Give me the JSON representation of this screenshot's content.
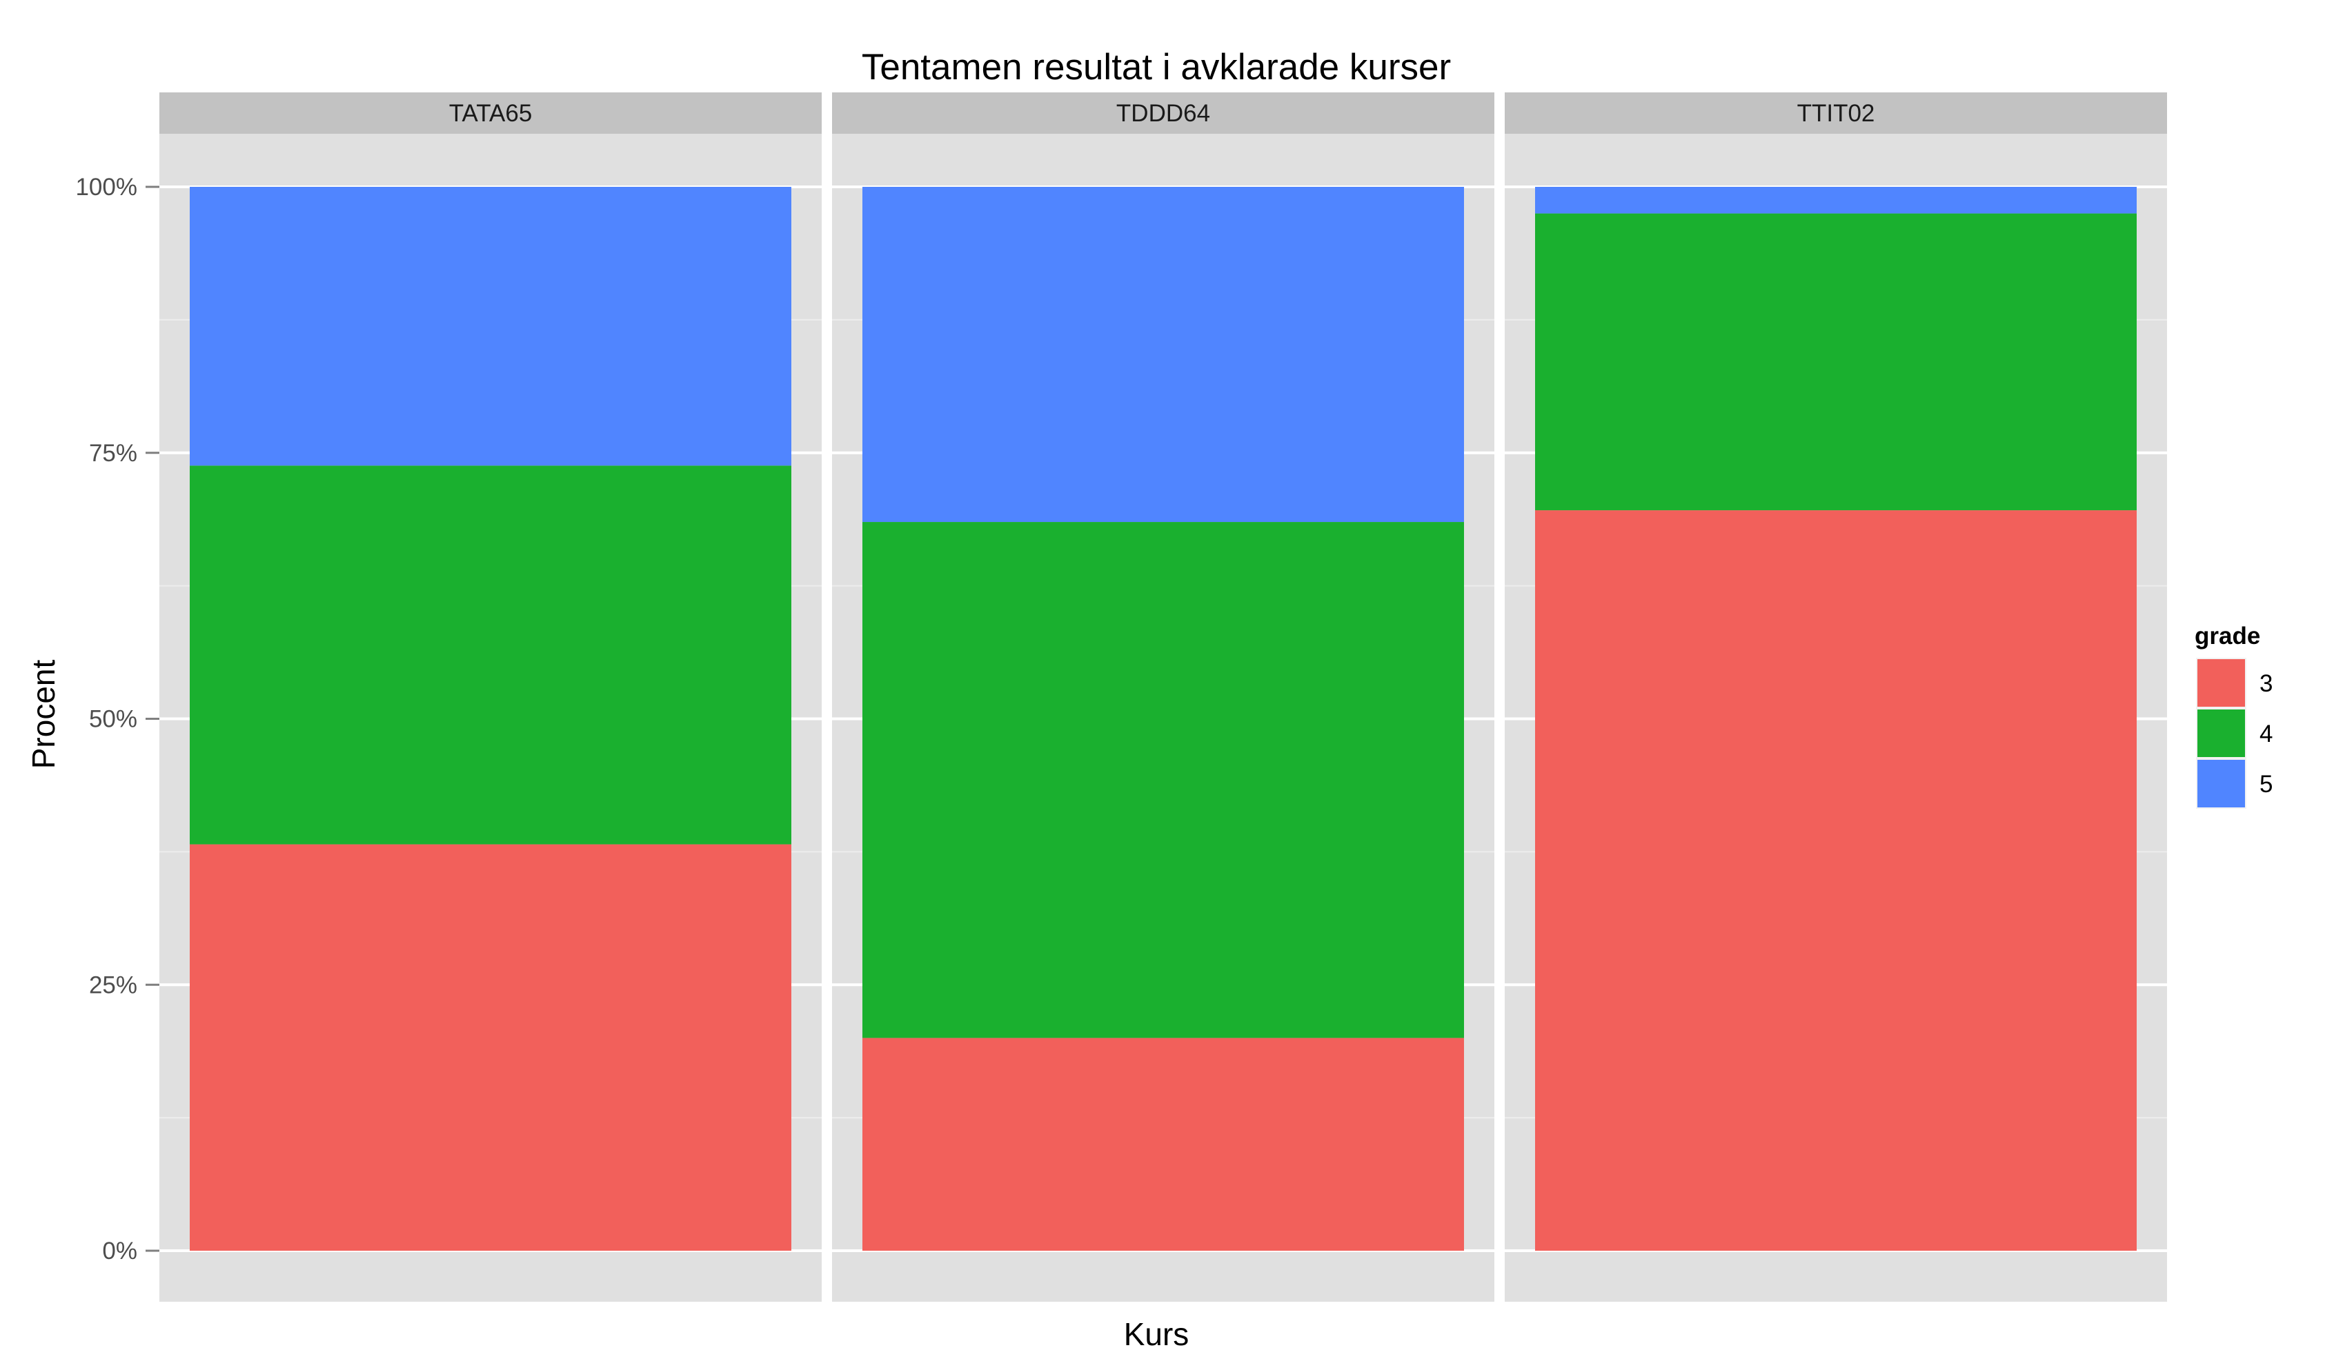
{
  "chart_data": {
    "type": "bar",
    "stacked": true,
    "percent": true,
    "title": "Tentamen resultat i avklarade kurser",
    "xlabel": "Kurs",
    "ylabel": "Procent",
    "ylim": [
      0,
      100
    ],
    "yticks": [
      0,
      25,
      50,
      75,
      100
    ],
    "ytick_labels": [
      "0%",
      "25%",
      "50%",
      "75%",
      "100%"
    ],
    "grid": true,
    "legend": {
      "title": "grade",
      "position": "right",
      "entries": [
        "3",
        "4",
        "5"
      ]
    },
    "colors": {
      "3": "#F2605B",
      "4": "#1AB02F",
      "5": "#5085FF",
      "panel_background": "#E0E0E0",
      "strip_background": "#C2C2C2"
    },
    "facets": [
      {
        "name": "TATA65",
        "values": {
          "3": 38.2,
          "4": 35.6,
          "5": 26.2
        }
      },
      {
        "name": "TDDD64",
        "values": {
          "3": 20.0,
          "4": 48.5,
          "5": 31.5
        }
      },
      {
        "name": "TTIT02",
        "values": {
          "3": 69.6,
          "4": 27.9,
          "5": 2.5
        }
      }
    ]
  }
}
